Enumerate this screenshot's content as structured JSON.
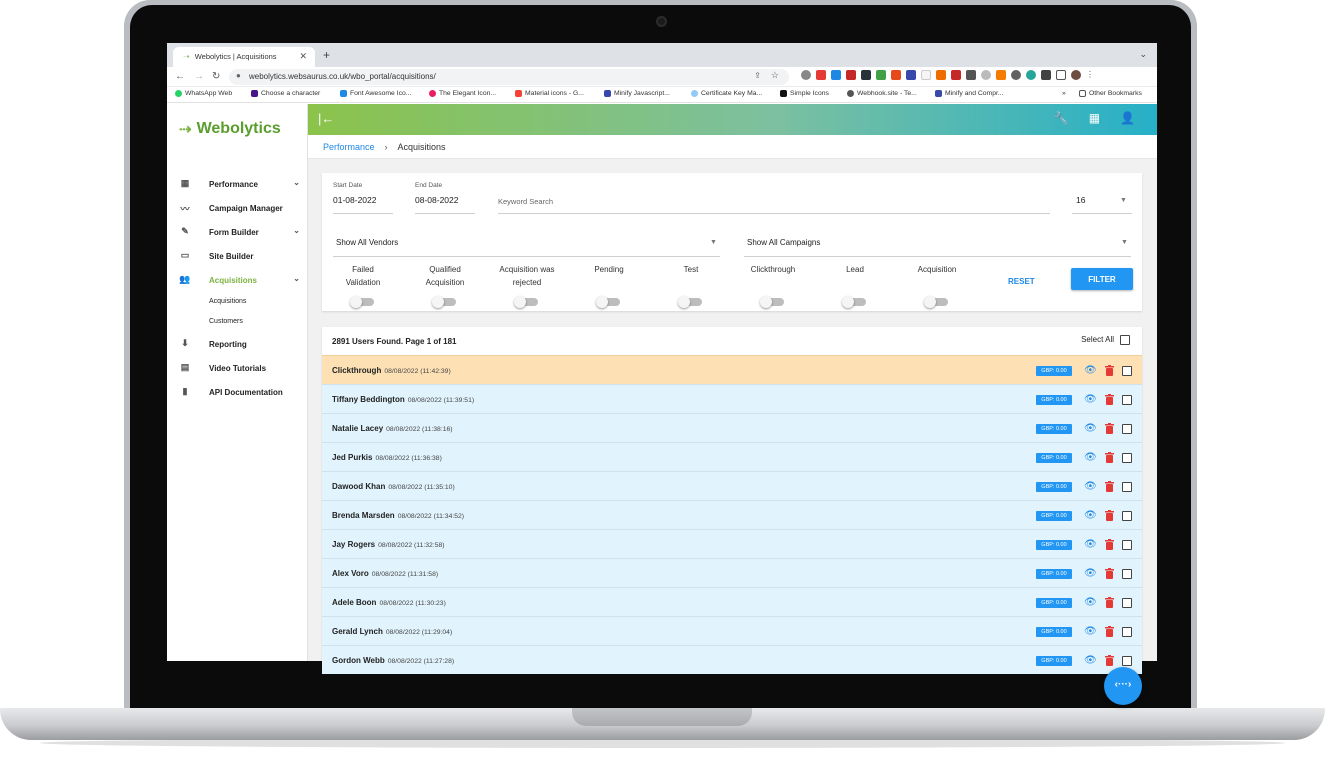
{
  "browser": {
    "tab_title": "Webolytics | Acquisitions",
    "url": "webolytics.websaurus.co.uk/wbo_portal/acquisitions/",
    "bookmarks": [
      "WhatsApp Web",
      "Choose a character",
      "Font Awesome Ico...",
      "The Elegant Icon...",
      "Material icons - G...",
      "Minify Javascript...",
      "Certificate Key Ma...",
      "Simple Icons",
      "Webhook.site - Te...",
      "Minify and Compr..."
    ],
    "other_bookmarks": "Other Bookmarks"
  },
  "brand": {
    "name": "Webolytics",
    "accent": "#7cb342"
  },
  "sidebar": {
    "items": [
      {
        "label": "Performance",
        "icon": "dashboard-icon"
      },
      {
        "label": "Campaign Manager",
        "icon": "trend-icon"
      },
      {
        "label": "Form Builder",
        "icon": "edit-icon"
      },
      {
        "label": "Site Builder",
        "icon": "layout-icon"
      },
      {
        "label": "Acquisitions",
        "icon": "users-icon"
      },
      {
        "label": "Reporting",
        "icon": "download-icon"
      },
      {
        "label": "Video Tutorials",
        "icon": "video-icon"
      },
      {
        "label": "API Documentation",
        "icon": "book-icon"
      }
    ],
    "subitems": [
      "Acquisitions",
      "Customers"
    ]
  },
  "breadcrumb": {
    "parent": "Performance",
    "current": "Acquisitions"
  },
  "filters": {
    "start_date_label": "Start Date",
    "start_date": "01-08-2022",
    "end_date_label": "End Date",
    "end_date": "08-08-2022",
    "keyword_placeholder": "Keyword Search",
    "page_size": "16",
    "vendors": "Show All Vendors",
    "campaigns": "Show All Campaigns",
    "toggles": [
      [
        "Failed",
        "Validation"
      ],
      [
        "Qualified",
        "Acquisition"
      ],
      [
        "Acquisition was",
        "rejected"
      ],
      [
        "Pending",
        ""
      ],
      [
        "Test",
        ""
      ],
      [
        "Clickthrough",
        ""
      ],
      [
        "Lead",
        ""
      ],
      [
        "Acquisition",
        ""
      ]
    ],
    "reset_label": "RESET",
    "filter_label": "FILTER"
  },
  "results": {
    "summary": "2891 Users Found. Page 1 of 181",
    "select_all": "Select All",
    "rows": [
      {
        "name": "Clickthrough",
        "time": "08/08/2022 (11:42:39)",
        "amount": "GBP: 0.00"
      },
      {
        "name": "Tiffany Beddington",
        "time": "08/08/2022 (11:39:51)",
        "amount": "GBP: 0.00"
      },
      {
        "name": "Natalie Lacey",
        "time": "08/08/2022 (11:38:16)",
        "amount": "GBP: 0.00"
      },
      {
        "name": "Jed Purkis",
        "time": "08/08/2022 (11:36:38)",
        "amount": "GBP: 0.00"
      },
      {
        "name": "Dawood Khan",
        "time": "08/08/2022 (11:35:10)",
        "amount": "GBP: 0.00"
      },
      {
        "name": "Brenda Marsden",
        "time": "08/08/2022 (11:34:52)",
        "amount": "GBP: 0.00"
      },
      {
        "name": "Jay Rogers",
        "time": "08/08/2022 (11:32:58)",
        "amount": "GBP: 0.00"
      },
      {
        "name": "Alex Voro",
        "time": "08/08/2022 (11:31:58)",
        "amount": "GBP: 0.00"
      },
      {
        "name": "Adele Boon",
        "time": "08/08/2022 (11:30:23)",
        "amount": "GBP: 0.00"
      },
      {
        "name": "Gerald Lynch",
        "time": "08/08/2022 (11:29:04)",
        "amount": "GBP: 0.00"
      },
      {
        "name": "Gordon Webb",
        "time": "08/08/2022 (11:27:28)",
        "amount": "GBP: 0.00"
      }
    ]
  },
  "fab": {
    "label": "‹···›"
  }
}
